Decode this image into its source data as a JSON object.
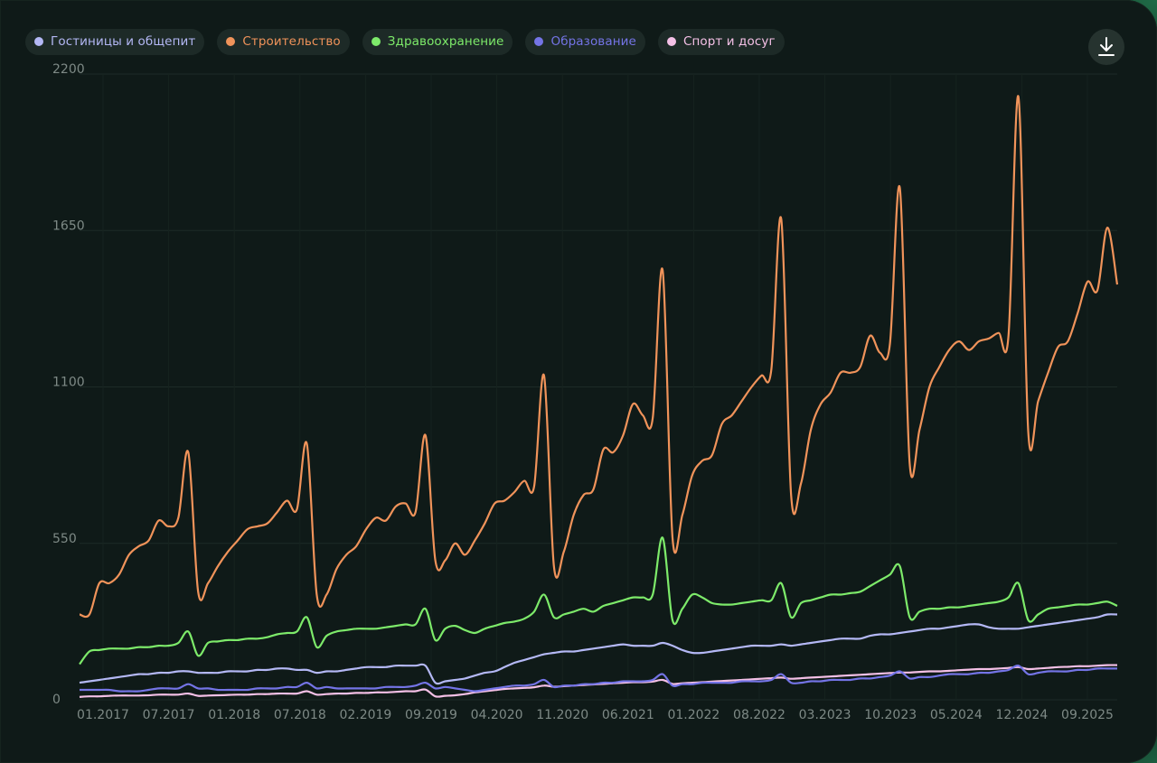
{
  "legend": [
    {
      "label": "Гостиницы и общепит",
      "color": "#b4b8f5"
    },
    {
      "label": "Строительство",
      "color": "#f0935a"
    },
    {
      "label": "Здравоохранение",
      "color": "#7dea6a"
    },
    {
      "label": "Образование",
      "color": "#7474e6"
    },
    {
      "label": "Спорт и досуг",
      "color": "#f4c0e6"
    }
  ],
  "download_icon": "download-icon",
  "chart_data": {
    "type": "line",
    "x_start": "01.2017",
    "x_end": "12.2025",
    "x_ticks": [
      "01.2017",
      "07.2017",
      "01.2018",
      "07.2018",
      "02.2019",
      "09.2019",
      "04.2020",
      "11.2020",
      "06.2021",
      "01.2022",
      "08.2022",
      "03.2023",
      "10.2023",
      "05.2024",
      "12.2024",
      "09.2025"
    ],
    "y_ticks": [
      0,
      550,
      1100,
      1650,
      2200
    ],
    "ylim": [
      0,
      2200
    ],
    "grid": true,
    "legend_position": "top-left",
    "series": [
      {
        "name": "Строительство",
        "color": "#f0935a",
        "values": [
          300,
          300,
          410,
          410,
          440,
          510,
          540,
          560,
          630,
          610,
          640,
          870,
          380,
          410,
          470,
          520,
          560,
          600,
          610,
          620,
          660,
          700,
          670,
          900,
          370,
          370,
          460,
          510,
          540,
          600,
          640,
          630,
          680,
          690,
          660,
          930,
          490,
          490,
          550,
          510,
          560,
          620,
          690,
          700,
          730,
          770,
          750,
          1140,
          470,
          520,
          650,
          720,
          740,
          880,
          870,
          930,
          1040,
          1000,
          990,
          1510,
          570,
          650,
          790,
          840,
          860,
          970,
          1000,
          1050,
          1100,
          1140,
          1160,
          1690,
          720,
          760,
          950,
          1040,
          1080,
          1150,
          1150,
          1170,
          1280,
          1220,
          1250,
          1800,
          830,
          950,
          1100,
          1170,
          1230,
          1260,
          1230,
          1260,
          1270,
          1290,
          1280,
          2120,
          940,
          1050,
          1150,
          1240,
          1260,
          1360,
          1470,
          1440,
          1660,
          1460
        ]
      },
      {
        "name": "Здравоохранение",
        "color": "#7dea6a",
        "values": [
          125,
          170,
          175,
          180,
          180,
          180,
          185,
          185,
          190,
          190,
          200,
          240,
          155,
          200,
          205,
          210,
          210,
          215,
          215,
          220,
          230,
          235,
          240,
          290,
          185,
          225,
          240,
          245,
          250,
          250,
          250,
          255,
          260,
          265,
          265,
          320,
          210,
          250,
          260,
          245,
          235,
          250,
          260,
          270,
          275,
          285,
          310,
          370,
          290,
          300,
          310,
          320,
          310,
          330,
          340,
          350,
          360,
          360,
          370,
          570,
          280,
          320,
          370,
          360,
          340,
          335,
          335,
          340,
          345,
          350,
          350,
          410,
          290,
          340,
          350,
          360,
          370,
          370,
          375,
          380,
          400,
          420,
          440,
          470,
          290,
          310,
          320,
          320,
          325,
          325,
          330,
          335,
          340,
          345,
          360,
          410,
          280,
          300,
          320,
          325,
          330,
          335,
          335,
          340,
          345,
          330
        ]
      },
      {
        "name": "Гостиницы и общепит",
        "color": "#b4b8f5",
        "values": [
          60,
          65,
          70,
          75,
          80,
          85,
          90,
          90,
          95,
          95,
          100,
          100,
          95,
          95,
          95,
          100,
          100,
          100,
          105,
          105,
          110,
          110,
          105,
          105,
          95,
          100,
          100,
          105,
          110,
          115,
          115,
          115,
          120,
          120,
          120,
          120,
          60,
          65,
          70,
          75,
          85,
          95,
          100,
          115,
          130,
          140,
          150,
          160,
          165,
          170,
          170,
          175,
          180,
          185,
          190,
          195,
          190,
          190,
          190,
          200,
          190,
          175,
          165,
          165,
          170,
          175,
          180,
          185,
          190,
          190,
          190,
          195,
          190,
          195,
          200,
          205,
          210,
          215,
          215,
          215,
          225,
          230,
          230,
          235,
          240,
          245,
          250,
          250,
          255,
          260,
          265,
          265,
          255,
          250,
          250,
          250,
          255,
          260,
          265,
          270,
          275,
          280,
          285,
          290,
          300,
          300
        ]
      },
      {
        "name": "Образование",
        "color": "#7474e6",
        "values": [
          35,
          35,
          35,
          35,
          30,
          30,
          30,
          35,
          40,
          40,
          40,
          55,
          40,
          40,
          35,
          35,
          35,
          35,
          40,
          40,
          40,
          45,
          45,
          60,
          40,
          45,
          40,
          40,
          40,
          40,
          40,
          45,
          45,
          45,
          50,
          60,
          40,
          45,
          40,
          35,
          30,
          35,
          40,
          45,
          50,
          50,
          55,
          70,
          45,
          50,
          50,
          55,
          55,
          60,
          60,
          65,
          65,
          65,
          70,
          90,
          50,
          55,
          55,
          60,
          60,
          60,
          60,
          65,
          65,
          65,
          70,
          90,
          60,
          60,
          65,
          65,
          70,
          70,
          70,
          75,
          75,
          80,
          85,
          100,
          75,
          80,
          80,
          85,
          90,
          90,
          90,
          95,
          95,
          100,
          105,
          120,
          90,
          95,
          100,
          100,
          100,
          105,
          105,
          110,
          110,
          110
        ]
      },
      {
        "name": "Спорт и досуг",
        "color": "#f4c0e6",
        "values": [
          10,
          12,
          12,
          14,
          15,
          15,
          15,
          16,
          18,
          18,
          18,
          22,
          14,
          15,
          16,
          17,
          18,
          18,
          20,
          20,
          22,
          22,
          22,
          30,
          18,
          20,
          22,
          22,
          24,
          24,
          26,
          26,
          28,
          30,
          30,
          36,
          12,
          14,
          16,
          20,
          26,
          30,
          34,
          38,
          40,
          42,
          44,
          50,
          46,
          48,
          50,
          52,
          54,
          56,
          58,
          60,
          62,
          62,
          64,
          70,
          56,
          58,
          60,
          62,
          64,
          66,
          68,
          70,
          72,
          74,
          76,
          78,
          74,
          76,
          78,
          80,
          82,
          84,
          86,
          88,
          90,
          92,
          94,
          96,
          96,
          98,
          100,
          100,
          102,
          104,
          106,
          108,
          108,
          110,
          112,
          115,
          108,
          110,
          112,
          115,
          116,
          118,
          118,
          120,
          122,
          122
        ]
      }
    ]
  }
}
